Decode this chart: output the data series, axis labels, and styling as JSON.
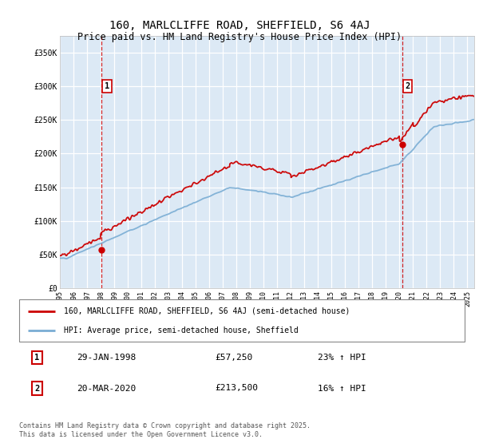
{
  "title1": "160, MARLCLIFFE ROAD, SHEFFIELD, S6 4AJ",
  "title2": "Price paid vs. HM Land Registry's House Price Index (HPI)",
  "background_color": "#ffffff",
  "plot_bg_color": "#dce9f5",
  "grid_color": "#ffffff",
  "red_color": "#cc0000",
  "blue_color": "#7aadd4",
  "dashed_color": "#cc0000",
  "ylim": [
    0,
    375000
  ],
  "yticks": [
    0,
    50000,
    100000,
    150000,
    200000,
    250000,
    300000,
    350000
  ],
  "ytick_labels": [
    "£0",
    "£50K",
    "£100K",
    "£150K",
    "£200K",
    "£250K",
    "£300K",
    "£350K"
  ],
  "xlim_start": 1995.0,
  "xlim_end": 2025.5,
  "xticks": [
    1995,
    1996,
    1997,
    1998,
    1999,
    2000,
    2001,
    2002,
    2003,
    2004,
    2005,
    2006,
    2007,
    2008,
    2009,
    2010,
    2011,
    2012,
    2013,
    2014,
    2015,
    2016,
    2017,
    2018,
    2019,
    2020,
    2021,
    2022,
    2023,
    2024,
    2025
  ],
  "legend_line1": "160, MARLCLIFFE ROAD, SHEFFIELD, S6 4AJ (semi-detached house)",
  "legend_line2": "HPI: Average price, semi-detached house, Sheffield",
  "marker1_x": 1998.08,
  "marker1_y": 57250,
  "marker1_label": "1",
  "marker2_x": 2020.22,
  "marker2_y": 213500,
  "marker2_label": "2",
  "ann1_date": "29-JAN-1998",
  "ann1_price": "£57,250",
  "ann1_hpi": "23% ↑ HPI",
  "ann2_date": "20-MAR-2020",
  "ann2_price": "£213,500",
  "ann2_hpi": "16% ↑ HPI",
  "footnote": "Contains HM Land Registry data © Crown copyright and database right 2025.\nThis data is licensed under the Open Government Licence v3.0."
}
